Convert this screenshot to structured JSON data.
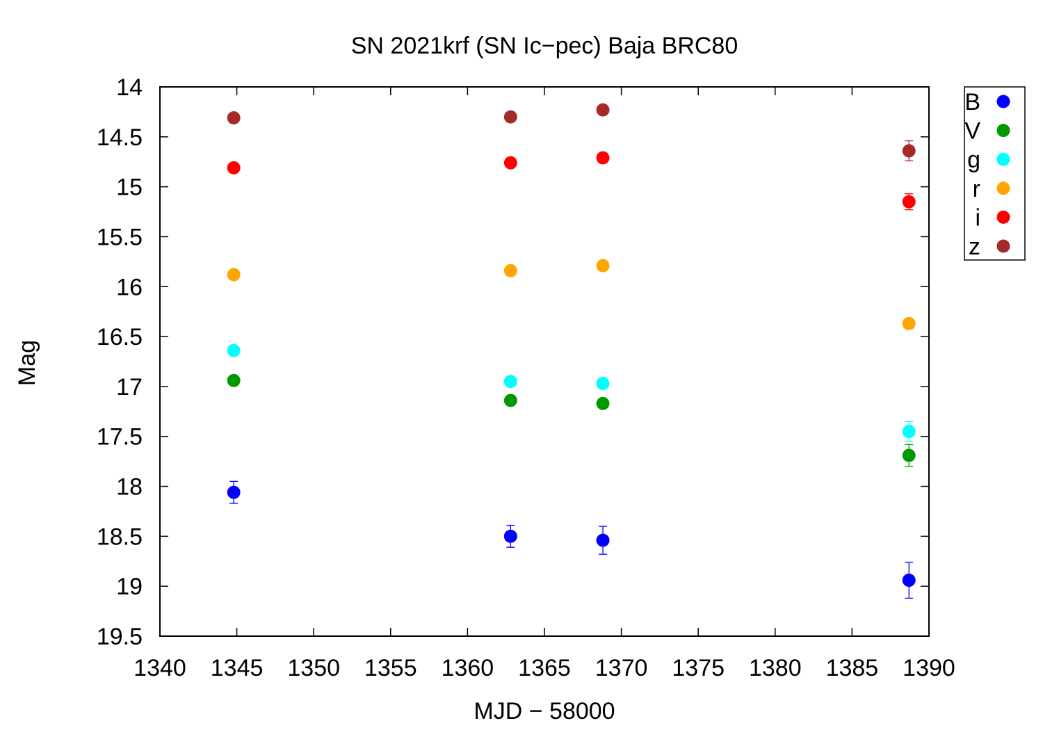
{
  "chart_data": {
    "type": "scatter",
    "title": "SN 2021krf (SN Ic−pec) Baja BRC80",
    "xlabel": "MJD − 58000",
    "ylabel": "Mag",
    "xlim": [
      1340,
      1390
    ],
    "ylim": [
      19.5,
      14
    ],
    "y_inverted": true,
    "grid": false,
    "legend_placement": "outside-right-top",
    "x_ticks": [
      "1340",
      "1345",
      "1350",
      "1355",
      "1360",
      "1365",
      "1370",
      "1375",
      "1380",
      "1385",
      "1390"
    ],
    "y_ticks": [
      "14",
      "14.5",
      "15",
      "15.5",
      "16",
      "16.5",
      "17",
      "17.5",
      "18",
      "18.5",
      "19",
      "19.5"
    ],
    "series": [
      {
        "name": "B",
        "color": "#0000ff",
        "points": [
          {
            "x": 1344.8,
            "y": 18.06,
            "err": 0.11
          },
          {
            "x": 1362.8,
            "y": 18.5,
            "err": 0.11
          },
          {
            "x": 1368.8,
            "y": 18.54,
            "err": 0.14
          },
          {
            "x": 1388.7,
            "y": 18.94,
            "err": 0.18
          }
        ]
      },
      {
        "name": "V",
        "color": "#009900",
        "points": [
          {
            "x": 1344.8,
            "y": 16.94,
            "err": 0.03
          },
          {
            "x": 1362.8,
            "y": 17.14,
            "err": 0.03
          },
          {
            "x": 1368.8,
            "y": 17.17,
            "err": 0.03
          },
          {
            "x": 1388.7,
            "y": 17.69,
            "err": 0.11
          }
        ]
      },
      {
        "name": "g",
        "color": "#00ffff",
        "points": [
          {
            "x": 1344.8,
            "y": 16.64,
            "err": 0.03
          },
          {
            "x": 1362.8,
            "y": 16.95,
            "err": 0.03
          },
          {
            "x": 1368.8,
            "y": 16.97,
            "err": 0.05
          },
          {
            "x": 1388.7,
            "y": 17.45,
            "err": 0.1
          }
        ]
      },
      {
        "name": "r",
        "color": "#ffa500",
        "points": [
          {
            "x": 1344.8,
            "y": 15.88,
            "err": 0.02
          },
          {
            "x": 1362.8,
            "y": 15.84,
            "err": 0.02
          },
          {
            "x": 1368.8,
            "y": 15.79,
            "err": 0.02
          },
          {
            "x": 1388.7,
            "y": 16.37,
            "err": 0.03
          }
        ]
      },
      {
        "name": "i",
        "color": "#ff0000",
        "points": [
          {
            "x": 1344.8,
            "y": 14.81,
            "err": 0.02
          },
          {
            "x": 1362.8,
            "y": 14.76,
            "err": 0.02
          },
          {
            "x": 1368.8,
            "y": 14.71,
            "err": 0.02
          },
          {
            "x": 1388.7,
            "y": 15.15,
            "err": 0.08
          }
        ]
      },
      {
        "name": "z",
        "color": "#a52a2a",
        "points": [
          {
            "x": 1344.8,
            "y": 14.31,
            "err": 0.04
          },
          {
            "x": 1362.8,
            "y": 14.3,
            "err": 0.03
          },
          {
            "x": 1368.8,
            "y": 14.23,
            "err": 0.03
          },
          {
            "x": 1388.7,
            "y": 14.64,
            "err": 0.1
          }
        ]
      }
    ]
  }
}
